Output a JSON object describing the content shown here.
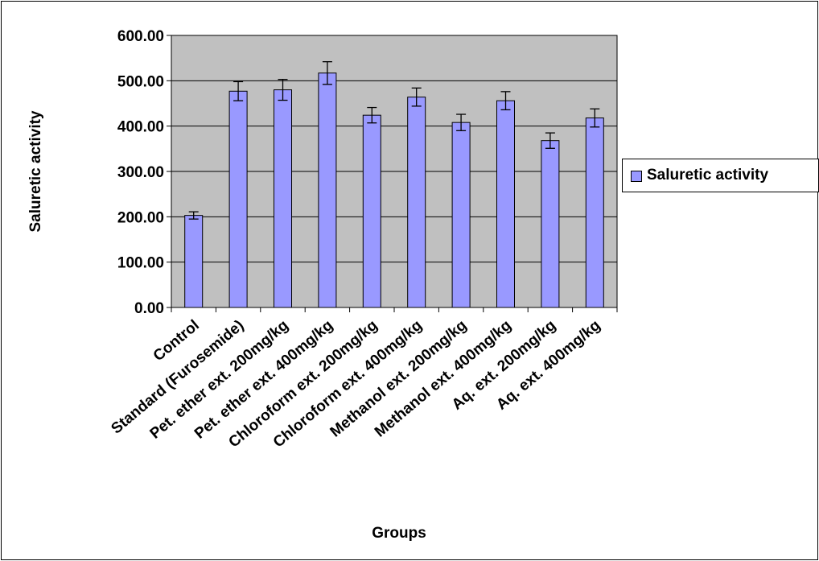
{
  "chart_data": {
    "type": "bar",
    "xlabel": "Groups",
    "ylabel": "Saluretic activity",
    "ylim": [
      0,
      600
    ],
    "yticks": [
      "0.00",
      "100.00",
      "200.00",
      "300.00",
      "400.00",
      "500.00",
      "600.00"
    ],
    "grid": true,
    "legend_position": "right",
    "plot_background": "#c0c0c0",
    "bar_color": "#9999ff",
    "categories": [
      "Control",
      "Standard (Furosemide)",
      "Pet. ether ext. 200mg/kg",
      "Pet. ether ext. 400mg/kg",
      "Chloroform ext. 200mg/kg",
      "Chloroform ext. 400mg/kg",
      "Methanol ext. 200mg/kg",
      "Methanol ext. 400mg/kg",
      "Aq. ext. 200mg/kg",
      "Aq. ext. 400mg/kg"
    ],
    "series": [
      {
        "name": "Saluretic activity",
        "values": [
          203,
          477,
          480,
          517,
          424,
          464,
          408,
          456,
          368,
          418
        ],
        "errors": [
          8,
          21,
          23,
          25,
          17,
          20,
          18,
          20,
          17,
          20
        ]
      }
    ]
  }
}
